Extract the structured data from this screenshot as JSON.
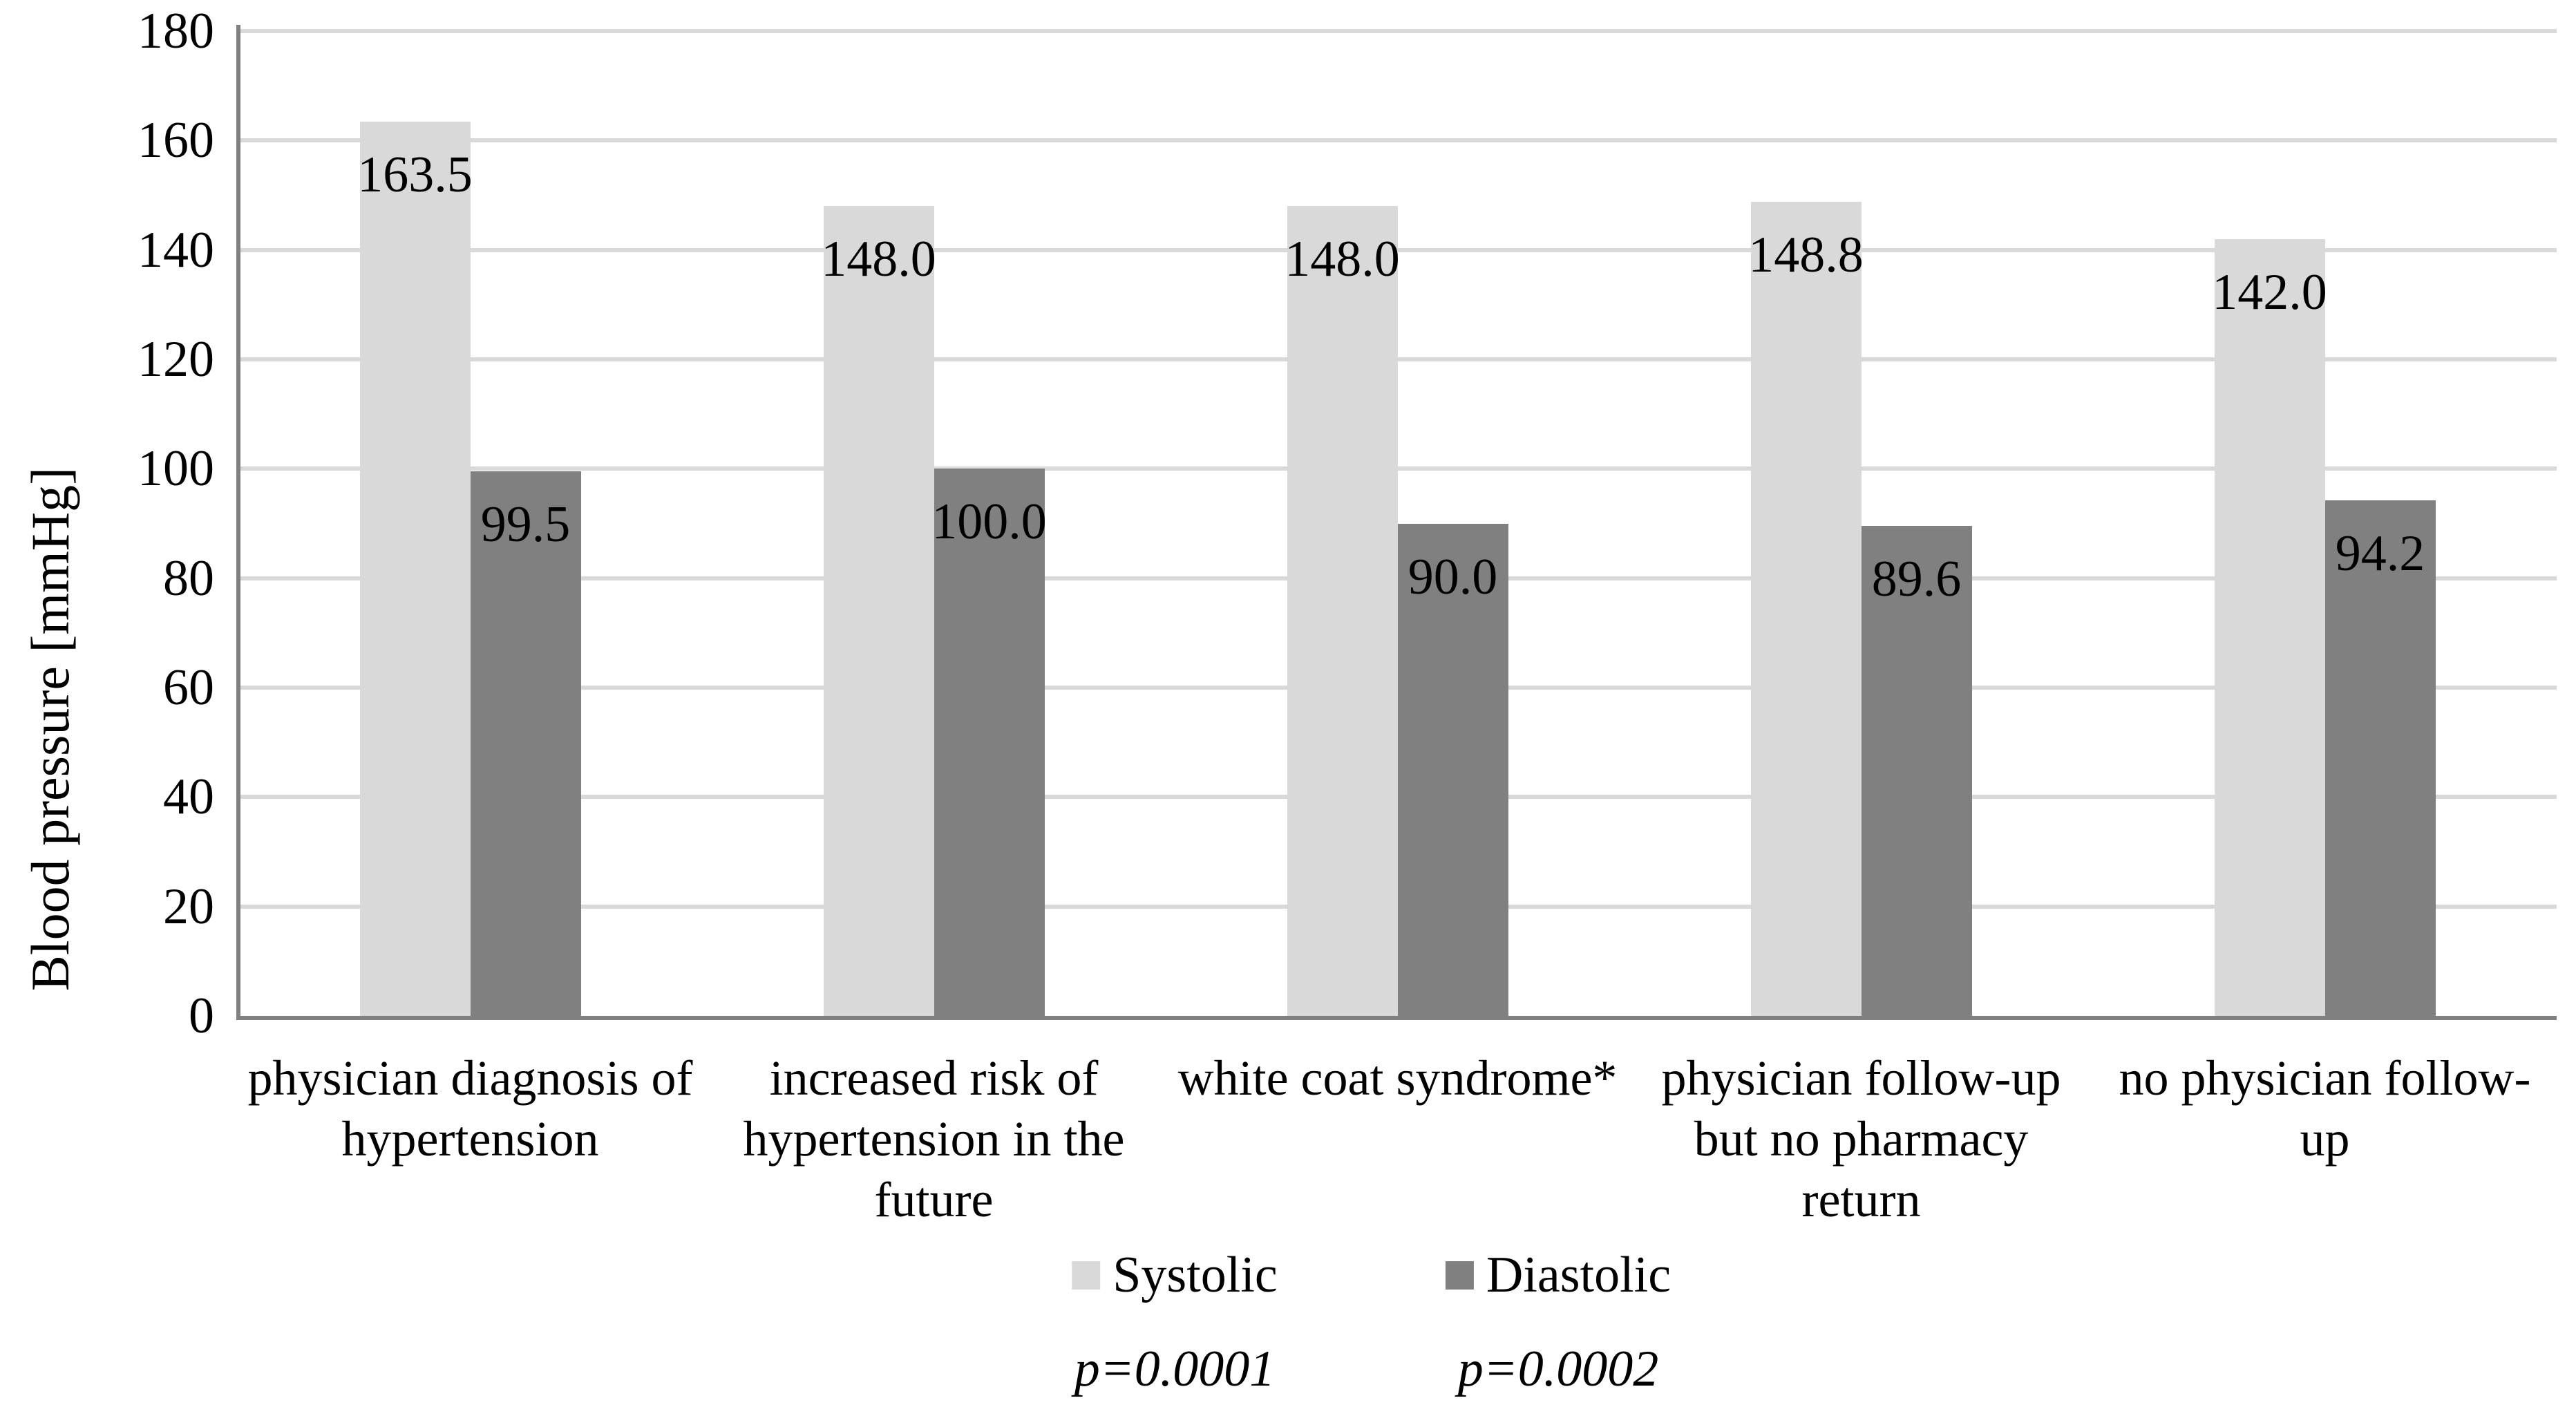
{
  "chart_data": {
    "type": "bar",
    "title": "",
    "xlabel": "",
    "ylabel": "Blood pressure [mmHg]",
    "ylim": [
      0,
      180
    ],
    "ytick_interval": 20,
    "yticks": [
      0,
      20,
      40,
      60,
      80,
      100,
      120,
      140,
      160,
      180
    ],
    "grid": true,
    "legend_position": "bottom",
    "value_labels": {
      "show": true,
      "decimals": 1,
      "position": "inside-end"
    },
    "categories": [
      "physician diagnosis of hypertension",
      "increased risk of hypertension in the future",
      "white coat syndrome*",
      "physician follow-up but no pharmacy return",
      "no physician follow-up"
    ],
    "category_display_lines": [
      "physician diagnosis of\nhypertension",
      "increased risk of\nhypertension in the\nfuture",
      "white coat syndrome*",
      "physician follow-up\nbut no pharmacy\nreturn",
      "no physician follow-\nup"
    ],
    "series": [
      {
        "name": "Systolic",
        "color": "#d9d9d9",
        "values": [
          163.5,
          148.0,
          148.0,
          148.8,
          142.0
        ],
        "p_value": "p=0.0001"
      },
      {
        "name": "Diastolic",
        "color": "#808080",
        "values": [
          99.5,
          100.0,
          90.0,
          89.6,
          94.2
        ],
        "p_value": "p=0.0002"
      }
    ]
  },
  "style_colors": {
    "grid_color": "#d9d9d9",
    "axis_color": "#808080",
    "text_color": "#000000",
    "background": "#ffffff"
  }
}
